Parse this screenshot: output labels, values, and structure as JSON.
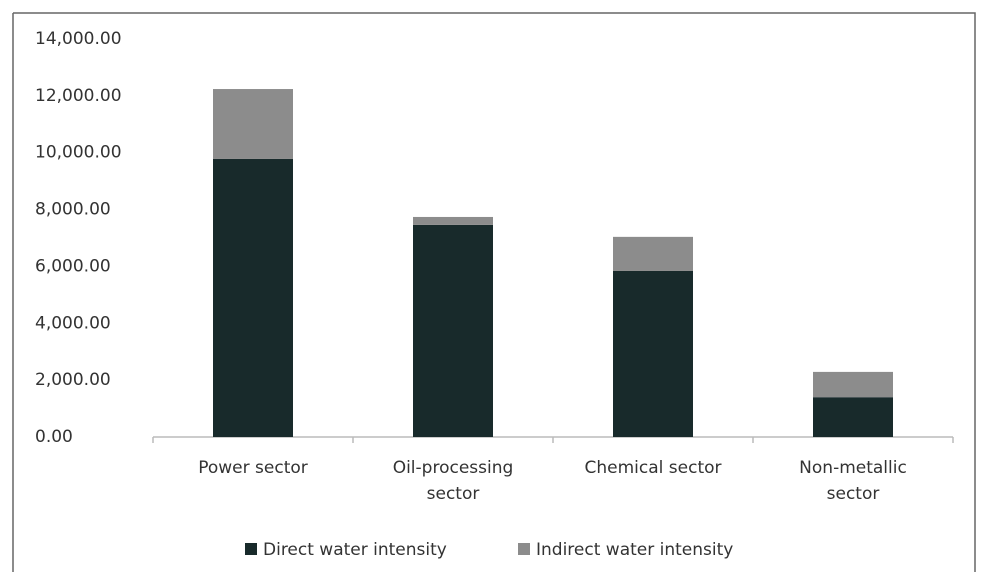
{
  "chart_data": {
    "type": "stacked_bar",
    "categories": [
      "Power sector",
      "Oil-processing sector",
      "Chemical sector",
      "Non-metallic sector"
    ],
    "series": [
      {
        "name": "Direct water intensity",
        "color": "#182a2b",
        "values": [
          9780,
          7460,
          5840,
          1400
        ]
      },
      {
        "name": "Indirect water intensity",
        "color": "#8c8c8c",
        "values": [
          2460,
          280,
          1200,
          890
        ]
      }
    ],
    "ylim": [
      0,
      14000
    ],
    "yticks": [
      {
        "value": 0,
        "label": "0.00"
      },
      {
        "value": 2000,
        "label": "2,000.00"
      },
      {
        "value": 4000,
        "label": "4,000.00"
      },
      {
        "value": 6000,
        "label": "6,000.00"
      },
      {
        "value": 8000,
        "label": "8,000.00"
      },
      {
        "value": 10000,
        "label": "10,000.00"
      },
      {
        "value": 12000,
        "label": "12,000.00"
      },
      {
        "value": 14000,
        "label": "14,000.00"
      }
    ],
    "grid": false,
    "legend": "bottom"
  }
}
